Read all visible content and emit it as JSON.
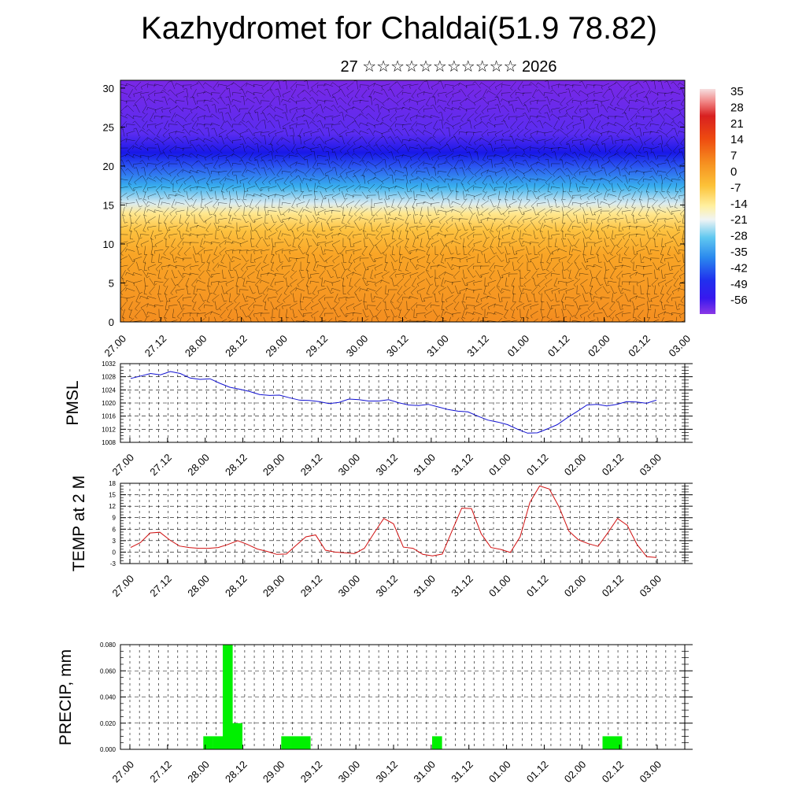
{
  "title": "Kazhydromet for Chaldai(51.9 78.82)",
  "subtitle": "27 ☆☆☆☆☆☆☆☆☆☆☆ 2026",
  "colors": {
    "pmsl": "#1010d0",
    "temp": "#d01010",
    "precip": "#00f000"
  },
  "chart_data": [
    {
      "type": "heatmap",
      "name": "cross-section",
      "x_ticks": [
        "27.00",
        "27.12",
        "28.00",
        "28.12",
        "29.00",
        "29.12",
        "30.00",
        "30.12",
        "31.00",
        "31.12",
        "01.00",
        "01.12",
        "02.00",
        "02.12",
        "03.00"
      ],
      "ylim": [
        0,
        31
      ],
      "y_ticks": [
        "0",
        "5",
        "10",
        "15",
        "20",
        "25",
        "30"
      ],
      "colorbar_labels": [
        "35",
        "28",
        "21",
        "14",
        "7",
        "0",
        "-7",
        "-14",
        "-21",
        "-28",
        "-35",
        "-42",
        "-49",
        "-56"
      ],
      "colorbar_range": [
        -63,
        42
      ]
    },
    {
      "type": "line",
      "name": "pmsl",
      "ylabel": "PMSL",
      "ylim": [
        1008,
        1032
      ],
      "y_ticks": [
        "1008",
        "1012",
        "1016",
        "1020",
        "1024",
        "1028",
        "1032"
      ],
      "x_ticks": [
        "27.00",
        "27.12",
        "28.00",
        "28.12",
        "29.00",
        "29.12",
        "30.00",
        "30.12",
        "31.00",
        "31.12",
        "01.00",
        "01.12",
        "02.00",
        "02.12",
        "03.00"
      ],
      "values": [
        1027.5,
        1028.2,
        1029.0,
        1028.6,
        1029.6,
        1029.0,
        1027.6,
        1027.2,
        1027.4,
        1026.0,
        1024.8,
        1024.2,
        1023.5,
        1022.6,
        1022.3,
        1022.4,
        1021.6,
        1020.9,
        1020.8,
        1020.4,
        1019.8,
        1020.2,
        1021.2,
        1021.0,
        1020.6,
        1020.6,
        1021.0,
        1020.1,
        1019.4,
        1019.2,
        1019.6,
        1018.8,
        1018.0,
        1017.5,
        1017.3,
        1016.0,
        1014.8,
        1014.2,
        1013.4,
        1012.0,
        1010.8,
        1010.9,
        1012.1,
        1013.4,
        1015.5,
        1017.4,
        1019.4,
        1019.6,
        1019.1,
        1019.6,
        1020.4,
        1020.3,
        1019.9,
        1020.9
      ]
    },
    {
      "type": "line",
      "name": "temp",
      "ylabel": "TEMP at 2 M",
      "ylim": [
        -3,
        18
      ],
      "y_ticks": [
        "-3",
        "0",
        "3",
        "6",
        "9",
        "12",
        "15",
        "18"
      ],
      "x_ticks": [
        "27.00",
        "27.12",
        "28.00",
        "28.12",
        "29.00",
        "29.12",
        "30.00",
        "30.12",
        "31.00",
        "31.12",
        "01.00",
        "01.12",
        "02.00",
        "02.12",
        "03.00"
      ],
      "values": [
        1.2,
        2.5,
        5.0,
        5.2,
        3.2,
        1.6,
        1.2,
        1.0,
        1.0,
        1.2,
        2.0,
        3.0,
        2.0,
        0.8,
        0.2,
        -0.6,
        -0.5,
        1.8,
        4.0,
        4.5,
        0.5,
        0.0,
        -0.2,
        -0.4,
        1.0,
        5.0,
        8.8,
        7.4,
        1.3,
        1.0,
        -0.6,
        -1.0,
        -0.5,
        5.5,
        11.5,
        11.4,
        4.8,
        1.2,
        0.7,
        -0.1,
        4.0,
        13.0,
        17.3,
        16.5,
        11.8,
        5.5,
        3.2,
        2.2,
        1.5,
        5.0,
        8.8,
        7.0,
        2.0,
        -1.2,
        -1.4
      ]
    },
    {
      "type": "bar",
      "name": "precip",
      "ylabel": "PRECIP, mm",
      "ylim": [
        0,
        0.08
      ],
      "y_ticks": [
        "0.000",
        "0.020",
        "0.040",
        "0.060",
        "0.080"
      ],
      "x_ticks": [
        "27.00",
        "27.12",
        "28.00",
        "28.12",
        "29.00",
        "29.12",
        "30.00",
        "30.12",
        "31.00",
        "31.12",
        "01.00",
        "01.12",
        "02.00",
        "02.12",
        "03.00"
      ],
      "bars": [
        {
          "x": 7,
          "value": 0.01
        },
        {
          "x": 8,
          "value": 0.01
        },
        {
          "x": 9,
          "value": 0.08
        },
        {
          "x": 10,
          "value": 0.02
        },
        {
          "x": 15,
          "value": 0.01
        },
        {
          "x": 16,
          "value": 0.01
        },
        {
          "x": 17,
          "value": 0.01
        },
        {
          "x": 30.5,
          "value": 0.01
        },
        {
          "x": 48,
          "value": 0.01
        },
        {
          "x": 49,
          "value": 0.01
        }
      ]
    }
  ]
}
